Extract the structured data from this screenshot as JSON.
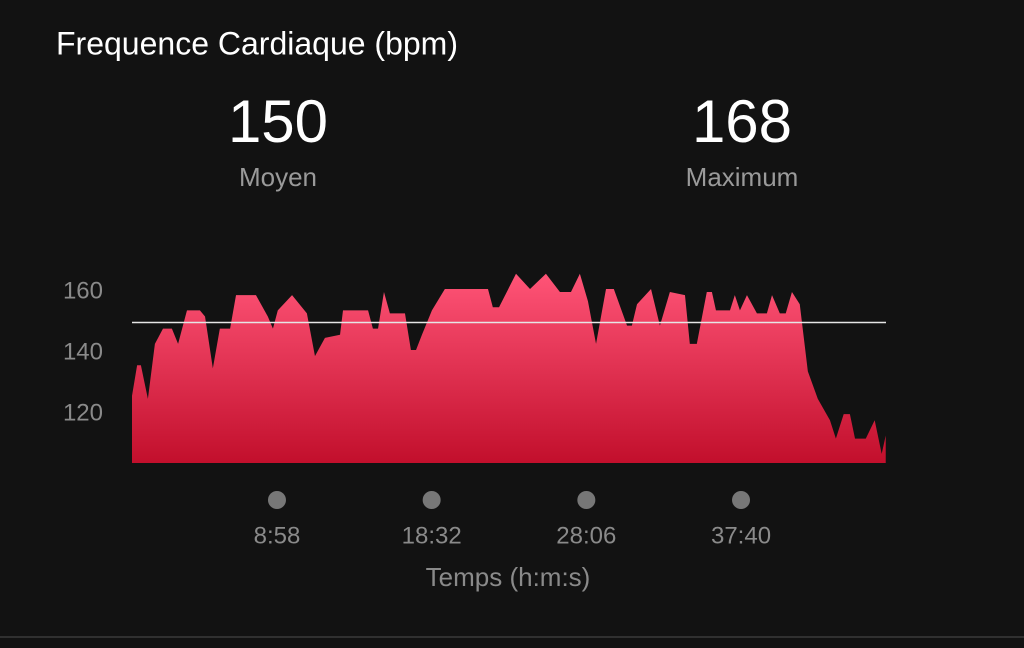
{
  "chart_data": {
    "type": "area",
    "title": "Frequence Cardiaque (bpm)",
    "stats": [
      {
        "value": 150,
        "label": "Moyen"
      },
      {
        "value": 168,
        "label": "Maximum"
      }
    ],
    "xlabel": "Temps (h:m:s)",
    "x": [
      0,
      19,
      33,
      59,
      85,
      115,
      148,
      171,
      204,
      252,
      271,
      300,
      326,
      364,
      386,
      460,
      504,
      523,
      541,
      594,
      649,
      679,
      716,
      772,
      783,
      876,
      894,
      913,
      935,
      957,
      1013,
      1035,
      1054,
      1076,
      1113,
      1161,
      1321,
      1339,
      1362,
      1425,
      1477,
      1536,
      1588,
      1629,
      1662,
      1692,
      1722,
      1759,
      1788,
      1837,
      1855,
      1874,
      1926,
      1959,
      1996,
      2052,
      2070,
      2096,
      2133,
      2152,
      2167,
      2219,
      2237,
      2256,
      2282,
      2319,
      2356,
      2375,
      2404,
      2426,
      2449,
      2478,
      2508,
      2545,
      2590,
      2612,
      2641,
      2664,
      2683,
      2723,
      2756,
      2782,
      2797
    ],
    "values": [
      126,
      136,
      136,
      125,
      143,
      148,
      148,
      143,
      154,
      154,
      152,
      135,
      148,
      148,
      159,
      159,
      152,
      148,
      154,
      159,
      153,
      139,
      145,
      146,
      154,
      154,
      148,
      148,
      160,
      153,
      153,
      141,
      141,
      146,
      154,
      161,
      161,
      155,
      155,
      166,
      161,
      166,
      160,
      160,
      166,
      157,
      143,
      161,
      161,
      149,
      149,
      156,
      161,
      149,
      160,
      159,
      143,
      143,
      160,
      160,
      154,
      154,
      159,
      154,
      159,
      153,
      153,
      159,
      153,
      153,
      160,
      156,
      134,
      125,
      118,
      112,
      120,
      120,
      112,
      112,
      118,
      107,
      113
    ],
    "xlim": [
      0,
      2798
    ],
    "ylim": [
      104,
      170
    ],
    "xticks": [
      {
        "value": 538,
        "label": "8:58"
      },
      {
        "value": 1112,
        "label": "18:32"
      },
      {
        "value": 1686,
        "label": "28:06"
      },
      {
        "value": 2260,
        "label": "37:40"
      }
    ],
    "yticks": [
      120,
      140,
      160
    ],
    "gradient": [
      "#ff5477",
      "#c20f2c"
    ],
    "reference_color": "#e6e6e6"
  }
}
